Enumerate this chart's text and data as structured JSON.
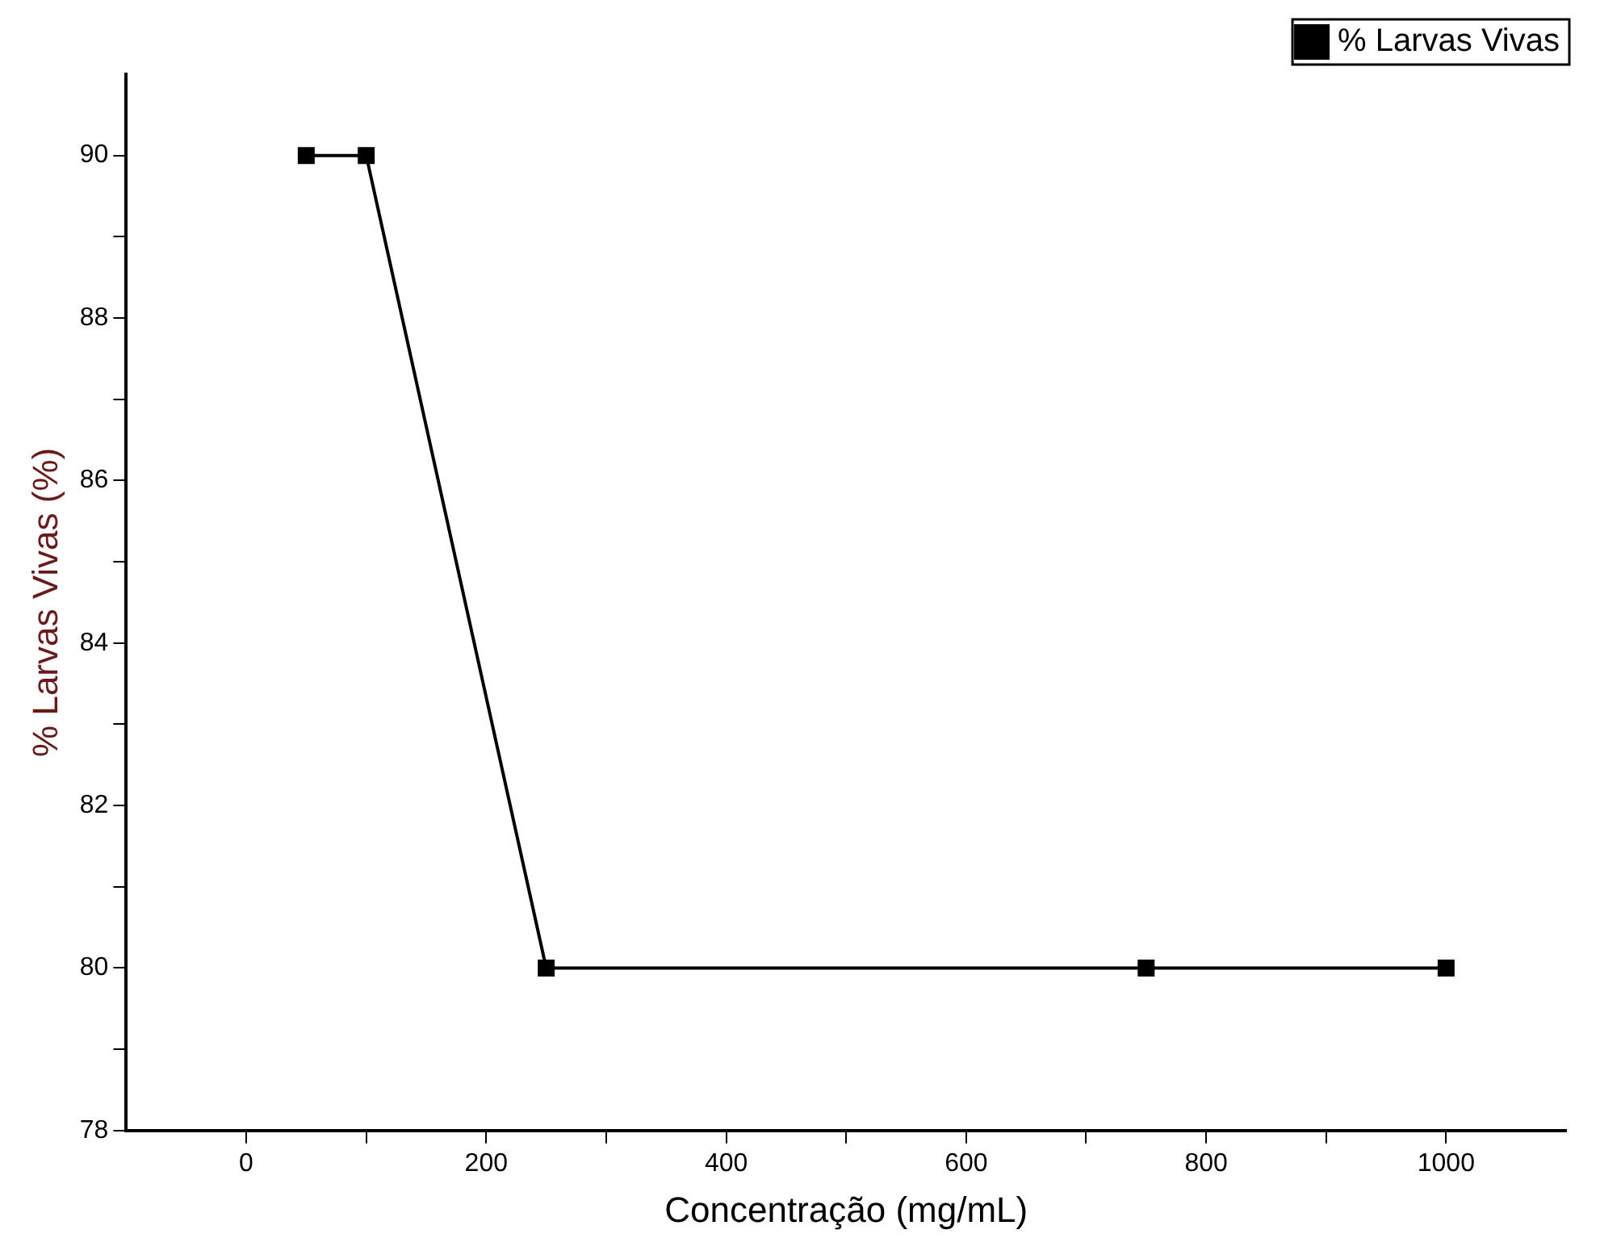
{
  "chart_data": {
    "type": "line",
    "xlabel": "Concentração (mg/mL)",
    "ylabel": "% Larvas Vivas (%)",
    "x": [
      50,
      100,
      250,
      750,
      1000
    ],
    "series": [
      {
        "name": "% Larvas Vivas",
        "color": "#000000",
        "values": [
          90,
          90,
          80,
          80,
          80
        ]
      }
    ],
    "xlim": [
      -100,
      1100
    ],
    "xticks": [
      0,
      {
        "value": 100,
        "label": null
      },
      200,
      {
        "value": 300,
        "label": null
      },
      400,
      {
        "value": 500,
        "label": null
      },
      600,
      {
        "value": 700,
        "label": null
      },
      800,
      {
        "value": 900,
        "label": null
      },
      1000
    ],
    "ylim": [
      78,
      91
    ],
    "yticks": [
      78,
      {
        "value": 79,
        "label": null
      },
      80,
      {
        "value": 81,
        "label": null
      },
      82,
      {
        "value": 83,
        "label": null
      },
      84,
      {
        "value": 85,
        "label": null
      },
      86,
      {
        "value": 87,
        "label": null
      },
      88,
      {
        "value": 89,
        "label": null
      },
      90
    ],
    "legend": "top right",
    "marker": "square",
    "line_style": "solid",
    "grid": false
  }
}
